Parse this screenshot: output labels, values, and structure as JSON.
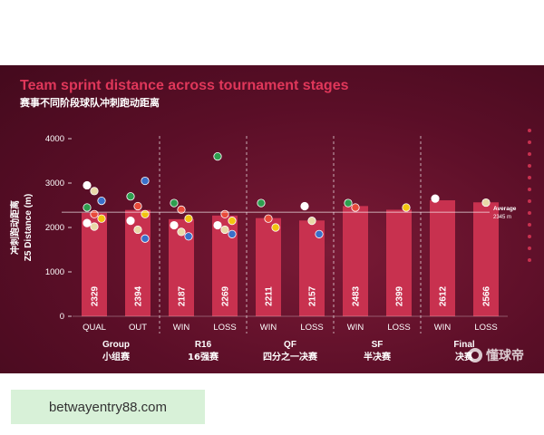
{
  "chart_data": {
    "type": "bar",
    "title": "Team sprint distance across tournament stages",
    "subtitle": "赛事不同阶段球队冲刺跑动距离",
    "ylabel_cn": "冲刺跑动距离",
    "ylabel": "Z5 Distance (m)",
    "ylim": [
      0,
      4000
    ],
    "yticks": [
      0,
      1000,
      2000,
      3000,
      4000
    ],
    "grid": false,
    "categories": [
      "QUAL",
      "OUT",
      "WIN",
      "LOSS",
      "WIN",
      "LOSS",
      "WIN",
      "LOSS",
      "WIN",
      "LOSS"
    ],
    "values": [
      2329,
      2394,
      2187,
      2269,
      2211,
      2157,
      2483,
      2399,
      2612,
      2566
    ],
    "groups": [
      {
        "name": "Group",
        "name_cn": "小组赛",
        "span": [
          0,
          1
        ]
      },
      {
        "name": "R16",
        "name_cn": "16强赛",
        "span": [
          2,
          3
        ]
      },
      {
        "name": "QF",
        "name_cn": "四分之一决赛",
        "span": [
          4,
          5
        ]
      },
      {
        "name": "SF",
        "name_cn": "半决赛",
        "span": [
          6,
          7
        ]
      },
      {
        "name": "Final",
        "name_cn": "决赛",
        "span": [
          8,
          9
        ]
      }
    ],
    "reference_line": {
      "label": "Average",
      "value": 2345,
      "value_label": "2345 m"
    },
    "team_points": [
      {
        "bar": 0,
        "y": 2950
      },
      {
        "bar": 0,
        "y": 2820
      },
      {
        "bar": 0,
        "y": 2600
      },
      {
        "bar": 0,
        "y": 2450
      },
      {
        "bar": 0,
        "y": 2300
      },
      {
        "bar": 0,
        "y": 2200
      },
      {
        "bar": 0,
        "y": 2100
      },
      {
        "bar": 0,
        "y": 2020
      },
      {
        "bar": 1,
        "y": 3050
      },
      {
        "bar": 1,
        "y": 2700
      },
      {
        "bar": 1,
        "y": 2480
      },
      {
        "bar": 1,
        "y": 2300
      },
      {
        "bar": 1,
        "y": 2150
      },
      {
        "bar": 1,
        "y": 1950
      },
      {
        "bar": 1,
        "y": 1750
      },
      {
        "bar": 2,
        "y": 2550
      },
      {
        "bar": 2,
        "y": 2400
      },
      {
        "bar": 2,
        "y": 2200
      },
      {
        "bar": 2,
        "y": 2050
      },
      {
        "bar": 2,
        "y": 1900
      },
      {
        "bar": 2,
        "y": 1800
      },
      {
        "bar": 3,
        "y": 3600
      },
      {
        "bar": 3,
        "y": 2300
      },
      {
        "bar": 3,
        "y": 2150
      },
      {
        "bar": 3,
        "y": 2050
      },
      {
        "bar": 3,
        "y": 1950
      },
      {
        "bar": 3,
        "y": 1850
      },
      {
        "bar": 4,
        "y": 2550
      },
      {
        "bar": 4,
        "y": 2200
      },
      {
        "bar": 4,
        "y": 2000
      },
      {
        "bar": 5,
        "y": 2480
      },
      {
        "bar": 5,
        "y": 2150
      },
      {
        "bar": 5,
        "y": 1850
      },
      {
        "bar": 6,
        "y": 2550
      },
      {
        "bar": 6,
        "y": 2450
      },
      {
        "bar": 7,
        "y": 2450
      },
      {
        "bar": 8,
        "y": 2650
      },
      {
        "bar": 9,
        "y": 2560
      }
    ]
  },
  "watermark": {
    "icon": "ball-icon",
    "text": "懂球帝"
  },
  "ad_banner": {
    "text": "betwayentry88.com"
  },
  "colors": {
    "background": "#5a0e27",
    "bar": "#c8314f",
    "title": "#e0375a",
    "ad_background": "#d8f1d8"
  }
}
